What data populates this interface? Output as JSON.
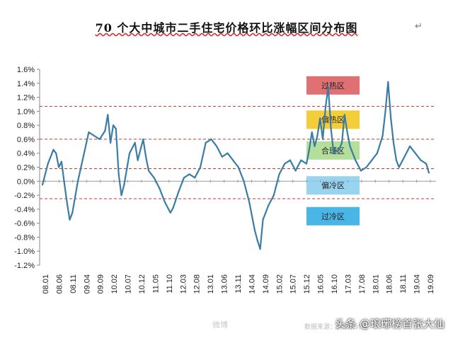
{
  "chart_data": {
    "type": "line",
    "title": "70 个大中城市二手住宅价格环比涨幅区间分布图",
    "title_mark": "↵",
    "ylim": [
      -1.2,
      1.6
    ],
    "yticks": [
      "1.6%",
      "1.4%",
      "1.2%",
      "1.0%",
      "0.8%",
      "0.6%",
      "0.4%",
      "0.2%",
      "0.0%",
      "-0.2%",
      "-0.4%",
      "-0.6%",
      "-0.8%",
      "-1.0%",
      "-1.2%"
    ],
    "ytick_values": [
      1.6,
      1.4,
      1.2,
      1.0,
      0.8,
      0.6,
      0.4,
      0.2,
      0.0,
      -0.2,
      -0.4,
      -0.6,
      -0.8,
      -1.0,
      -1.2
    ],
    "x_labels": [
      "08.01",
      "08.06",
      "08.11",
      "09.04",
      "09.09",
      "10.02",
      "10.07",
      "10.12",
      "11.05",
      "11.10",
      "12.03",
      "12.08",
      "13.01",
      "13.06",
      "13.11",
      "14.04",
      "14.09",
      "15.02",
      "15.07",
      "15.12",
      "16.05",
      "16.10",
      "17.03",
      "17.08",
      "18.01",
      "18.06",
      "18.11",
      "19.04",
      "19.09"
    ],
    "x_start": "2008-01",
    "x_end": "2019-11",
    "reference_lines": [
      1.07,
      0.6,
      0.18,
      -0.25
    ],
    "bands": [
      {
        "label": "过热区",
        "y": 1.37,
        "color": "#d9575a"
      },
      {
        "label": "偏热区",
        "y": 0.88,
        "color": "#f2c418"
      },
      {
        "label": "合理区",
        "y": 0.44,
        "color": "#a7d88a"
      },
      {
        "label": "偏冷区",
        "y": -0.06,
        "color": "#86ccec"
      },
      {
        "label": "过冷区",
        "y": -0.5,
        "color": "#2aa9e0"
      }
    ],
    "series": [
      {
        "color": "#3a7ca5",
        "x": [
          "2008-01",
          "2008-03",
          "2008-05",
          "2008-06",
          "2008-07",
          "2008-08",
          "2008-09",
          "2008-10",
          "2008-11",
          "2008-12",
          "2009-02",
          "2009-04",
          "2009-06",
          "2009-08",
          "2009-10",
          "2009-12",
          "2010-01",
          "2010-02",
          "2010-03",
          "2010-04",
          "2010-05",
          "2010-06",
          "2010-07",
          "2010-09",
          "2010-11",
          "2010-12",
          "2011-02",
          "2011-03",
          "2011-04",
          "2011-06",
          "2011-08",
          "2011-10",
          "2011-12",
          "2012-01",
          "2012-03",
          "2012-05",
          "2012-07",
          "2012-09",
          "2012-11",
          "2013-01",
          "2013-03",
          "2013-05",
          "2013-07",
          "2013-09",
          "2013-11",
          "2014-01",
          "2014-03",
          "2014-05",
          "2014-07",
          "2014-08",
          "2014-09",
          "2014-10",
          "2014-12",
          "2015-02",
          "2015-04",
          "2015-06",
          "2015-08",
          "2015-10",
          "2015-12",
          "2016-02",
          "2016-03",
          "2016-04",
          "2016-05",
          "2016-06",
          "2016-07",
          "2016-08",
          "2016-09",
          "2016-10",
          "2016-11",
          "2016-12",
          "2017-02",
          "2017-03",
          "2017-04",
          "2017-05",
          "2017-06",
          "2017-08",
          "2017-10",
          "2017-12",
          "2018-02",
          "2018-04",
          "2018-06",
          "2018-07",
          "2018-08",
          "2018-09",
          "2018-10",
          "2018-11",
          "2018-12",
          "2019-02",
          "2019-04",
          "2019-06",
          "2019-08",
          "2019-10",
          "2019-11"
        ],
        "y": [
          -0.05,
          0.25,
          0.45,
          0.4,
          0.2,
          0.28,
          -0.02,
          -0.3,
          -0.55,
          -0.45,
          0.0,
          0.35,
          0.7,
          0.65,
          0.6,
          0.72,
          0.95,
          0.55,
          0.8,
          0.75,
          0.1,
          -0.2,
          -0.05,
          0.4,
          0.55,
          0.3,
          0.6,
          0.35,
          0.15,
          0.05,
          -0.1,
          -0.3,
          -0.45,
          -0.38,
          -0.15,
          0.05,
          0.1,
          0.05,
          0.2,
          0.55,
          0.6,
          0.5,
          0.35,
          0.4,
          0.3,
          0.2,
          0.0,
          -0.3,
          -0.7,
          -0.85,
          -0.97,
          -0.55,
          -0.35,
          -0.2,
          0.1,
          0.25,
          0.3,
          0.15,
          0.3,
          0.25,
          0.45,
          0.7,
          0.5,
          0.65,
          0.9,
          0.6,
          1.05,
          1.35,
          0.75,
          0.4,
          0.45,
          0.55,
          0.95,
          0.7,
          0.5,
          0.3,
          0.15,
          0.2,
          0.3,
          0.4,
          0.65,
          1.0,
          1.42,
          0.9,
          0.55,
          0.3,
          0.2,
          0.35,
          0.5,
          0.4,
          0.3,
          0.25,
          0.12
        ]
      }
    ],
    "grid": false,
    "legend": "none"
  },
  "footer": {
    "weibo": "微博",
    "source": "数据来源：国家统计局",
    "watermark": "头条 @琅琊榜首张大仙"
  }
}
